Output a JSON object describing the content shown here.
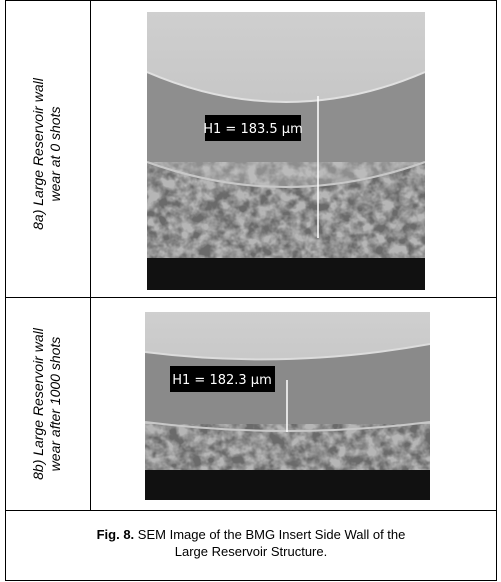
{
  "rows": [
    {
      "label": [
        "8a) Large Reservoir  wall",
        "wear at 0 shots"
      ],
      "measurement": "H1 = 183.5 μm"
    },
    {
      "label": [
        "8b) Large Reservoir  wall",
        "wear after 1000 shots"
      ],
      "measurement": "H1 = 182.3 μm"
    }
  ],
  "caption": {
    "label": "Fig. 8.",
    "lines": [
      "SEM Image of the BMG Insert Side Wall of the",
      "Large Reservoir Structure."
    ]
  }
}
